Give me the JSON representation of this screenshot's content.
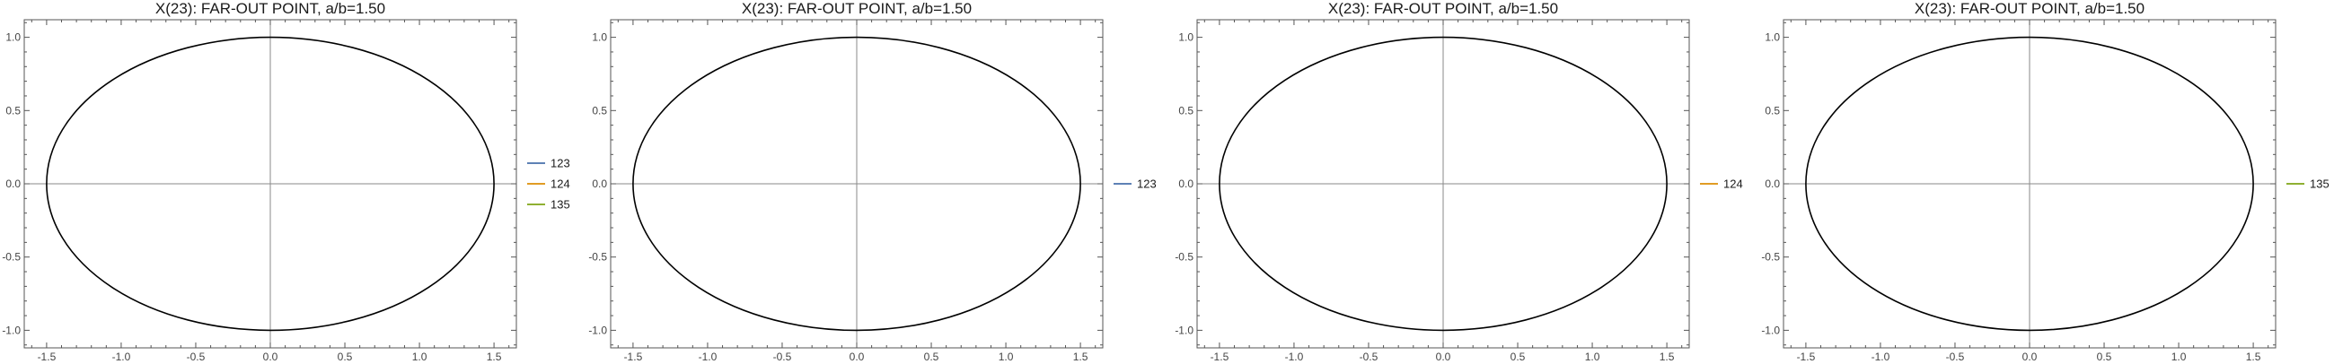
{
  "chart_data": [
    {
      "type": "line",
      "title": "X(23): FAR-OUT POINT, a/b=1.50",
      "xlabel": "",
      "ylabel": "",
      "xlim": [
        -1.65,
        1.65
      ],
      "ylim": [
        -1.12,
        1.12
      ],
      "xticks": [
        "-1.5",
        "-1.0",
        "-0.5",
        "0.0",
        "0.5",
        "1.0",
        "1.5"
      ],
      "yticks": [
        "-1.0",
        "-0.5",
        "0.0",
        "0.5",
        "1.0"
      ],
      "grid": false,
      "ellipse": {
        "a": 1.5,
        "b": 1.0,
        "color": "#000000"
      },
      "legend": {
        "placement": "right",
        "entries": [
          {
            "label": "123",
            "color": "#5e81b5"
          },
          {
            "label": "124",
            "color": "#e19c24"
          },
          {
            "label": "135",
            "color": "#8fb032"
          }
        ]
      }
    },
    {
      "type": "line",
      "title": "X(23): FAR-OUT POINT, a/b=1.50",
      "xlabel": "",
      "ylabel": "",
      "xlim": [
        -1.65,
        1.65
      ],
      "ylim": [
        -1.12,
        1.12
      ],
      "xticks": [
        "-1.5",
        "-1.0",
        "-0.5",
        "0.0",
        "0.5",
        "1.0",
        "1.5"
      ],
      "yticks": [
        "-1.0",
        "-0.5",
        "0.0",
        "0.5",
        "1.0"
      ],
      "grid": false,
      "ellipse": {
        "a": 1.5,
        "b": 1.0,
        "color": "#000000"
      },
      "legend": {
        "placement": "right",
        "entries": [
          {
            "label": "123",
            "color": "#5e81b5"
          }
        ]
      }
    },
    {
      "type": "line",
      "title": "X(23): FAR-OUT POINT, a/b=1.50",
      "xlabel": "",
      "ylabel": "",
      "xlim": [
        -1.65,
        1.65
      ],
      "ylim": [
        -1.12,
        1.12
      ],
      "xticks": [
        "-1.5",
        "-1.0",
        "-0.5",
        "0.0",
        "0.5",
        "1.0",
        "1.5"
      ],
      "yticks": [
        "-1.0",
        "-0.5",
        "0.0",
        "0.5",
        "1.0"
      ],
      "grid": false,
      "ellipse": {
        "a": 1.5,
        "b": 1.0,
        "color": "#000000"
      },
      "legend": {
        "placement": "right",
        "entries": [
          {
            "label": "124",
            "color": "#e19c24"
          }
        ]
      }
    },
    {
      "type": "line",
      "title": "X(23): FAR-OUT POINT, a/b=1.50",
      "xlabel": "",
      "ylabel": "",
      "xlim": [
        -1.65,
        1.65
      ],
      "ylim": [
        -1.12,
        1.12
      ],
      "xticks": [
        "-1.5",
        "-1.0",
        "-0.5",
        "0.0",
        "0.5",
        "1.0",
        "1.5"
      ],
      "yticks": [
        "-1.0",
        "-0.5",
        "0.0",
        "0.5",
        "1.0"
      ],
      "grid": false,
      "ellipse": {
        "a": 1.5,
        "b": 1.0,
        "color": "#000000"
      },
      "legend": {
        "placement": "right",
        "entries": [
          {
            "label": "135",
            "color": "#8fb032"
          }
        ]
      }
    }
  ]
}
